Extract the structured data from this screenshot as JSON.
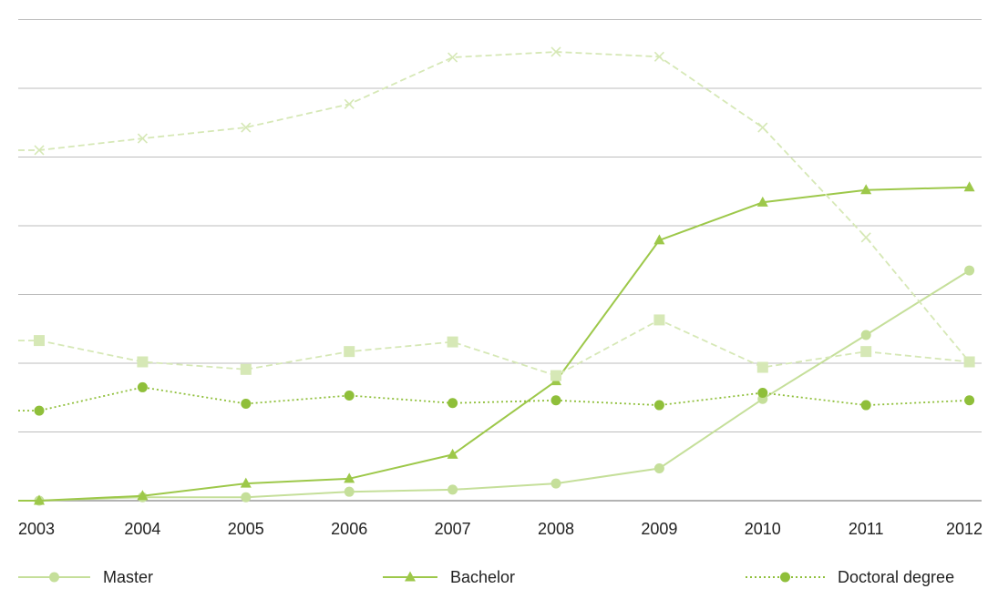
{
  "chart_data": {
    "type": "line",
    "x": [
      "2003",
      "2004",
      "2005",
      "2006",
      "2007",
      "2008",
      "2009",
      "2010",
      "2011",
      "2012"
    ],
    "ylim": [
      0,
      7.2
    ],
    "y_gridlines": [
      0,
      1,
      2,
      3,
      4,
      5,
      6,
      7
    ],
    "y_tick_labels_visible": false,
    "grid": true,
    "legend_position": "bottom",
    "series": [
      {
        "name": "Master",
        "color": "#c5df9a",
        "style": "solid",
        "marker": "circle",
        "values": [
          0.0,
          0.05,
          0.05,
          0.13,
          0.16,
          0.25,
          0.47,
          1.48,
          2.41,
          3.35
        ]
      },
      {
        "name": "Bachelor",
        "color": "#9dc84a",
        "style": "solid",
        "marker": "triangle",
        "values": [
          0.0,
          0.07,
          0.25,
          0.32,
          0.67,
          1.74,
          3.79,
          4.34,
          4.52,
          4.56
        ]
      },
      {
        "name": "Doctoral degree",
        "color": "#8fbf3a",
        "style": "dotted",
        "marker": "circle",
        "values": [
          1.31,
          1.65,
          1.41,
          1.53,
          1.42,
          1.46,
          1.39,
          1.57,
          1.39,
          1.46
        ]
      },
      {
        "name": "",
        "color": "#d6e8b6",
        "style": "dashed",
        "marker": "square",
        "values": [
          2.33,
          2.02,
          1.91,
          2.17,
          2.31,
          1.82,
          2.63,
          1.94,
          2.17,
          2.02
        ]
      },
      {
        "name": "",
        "color": "#d6e8b6",
        "style": "dashed",
        "marker": "x",
        "values": [
          5.1,
          5.27,
          5.43,
          5.77,
          6.45,
          6.53,
          6.46,
          5.43,
          3.83,
          2.02
        ]
      }
    ]
  }
}
